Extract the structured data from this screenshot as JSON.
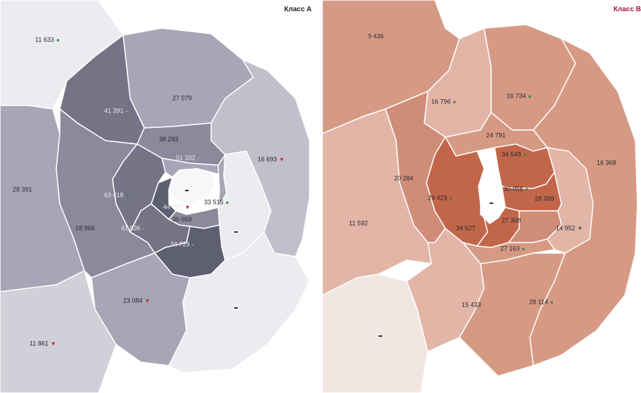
{
  "panels": {
    "a": {
      "title": "Класс А",
      "colors": {
        "lightest": "#ececf0",
        "light": "#d0d0d8",
        "mid": "#a6a6b6",
        "midDark": "#8a8a9c",
        "dark": "#747486",
        "darkest": "#5f5f72",
        "center": "#f7f7f9"
      },
      "labels": [
        {
          "id": "a1",
          "value": "11 633",
          "trend": "up"
        },
        {
          "id": "a2",
          "value": "41 391",
          "trend": "neutral"
        },
        {
          "id": "a3",
          "value": "27 079",
          "trend": "neutral"
        },
        {
          "id": "a4",
          "value": "16 693",
          "trend": "down"
        },
        {
          "id": "a5",
          "value": "38 293",
          "trend": "none"
        },
        {
          "id": "a6",
          "value": "51 332",
          "trend": "neutral"
        },
        {
          "id": "a7",
          "value": "28 391",
          "trend": "neutral"
        },
        {
          "id": "a8",
          "value": "63 418",
          "trend": "up"
        },
        {
          "id": "a9",
          "value": "44 797",
          "trend": "down"
        },
        {
          "id": "a10",
          "value": "33 515",
          "trend": "up"
        },
        {
          "id": "a11",
          "value": "18 966",
          "trend": "neutral"
        },
        {
          "id": "a12",
          "value": "41 536",
          "trend": "neutral"
        },
        {
          "id": "a13",
          "value": "36 669",
          "trend": "none"
        },
        {
          "id": "a14",
          "value": "34 729",
          "trend": "neutral"
        },
        {
          "id": "a15",
          "value": "23 084",
          "trend": "down"
        },
        {
          "id": "a16",
          "value": "11 861",
          "trend": "down"
        }
      ]
    },
    "b": {
      "title": "Класс В",
      "colors": {
        "lightest": "#f2e6e2",
        "light": "#e2b5a6",
        "mid": "#d69a84",
        "midDark": "#cf8d78",
        "dark": "#c2664a",
        "center": "#ffffff"
      },
      "labels": [
        {
          "id": "b1",
          "value": "9 436",
          "trend": "neutral"
        },
        {
          "id": "b2",
          "value": "16 796",
          "trend": "up"
        },
        {
          "id": "b3",
          "value": "16 734",
          "trend": "up"
        },
        {
          "id": "b4",
          "value": "24 791",
          "trend": "neutral"
        },
        {
          "id": "b5",
          "value": "34 549",
          "trend": "up"
        },
        {
          "id": "b6",
          "value": "16 368",
          "trend": "neutral"
        },
        {
          "id": "b7",
          "value": "20 284",
          "trend": "neutral"
        },
        {
          "id": "b8",
          "value": "29 423",
          "trend": "up"
        },
        {
          "id": "b9",
          "value": "30 956",
          "trend": "up"
        },
        {
          "id": "b10",
          "value": "28 399",
          "trend": "neutral"
        },
        {
          "id": "b11",
          "value": "11 592",
          "trend": "neutral"
        },
        {
          "id": "b12",
          "value": "34 627",
          "trend": "neutral"
        },
        {
          "id": "b13",
          "value": "27 308",
          "trend": "neutral"
        },
        {
          "id": "b14",
          "value": "14 952",
          "trend": "neutral"
        },
        {
          "id": "b15",
          "value": "27 163",
          "trend": "up"
        },
        {
          "id": "b16",
          "value": "15 433",
          "trend": "neutral"
        },
        {
          "id": "b17",
          "value": "28 114",
          "trend": "up"
        }
      ]
    }
  }
}
